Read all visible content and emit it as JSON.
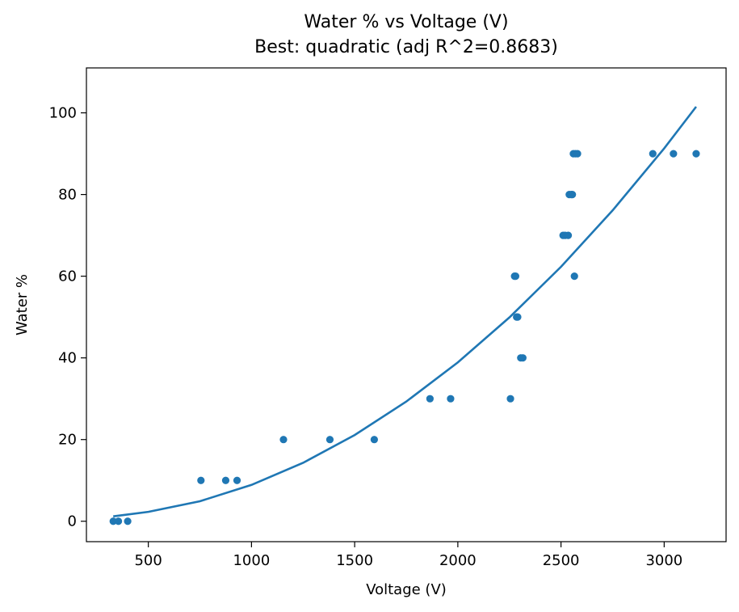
{
  "chart_data": {
    "type": "scatter",
    "title": "Water % vs Voltage (V)",
    "subtitle": "Best: quadratic (adj R^2=0.8683)",
    "xlabel": "Voltage (V)",
    "ylabel": "Water %",
    "xlim": [
      200,
      3300
    ],
    "ylim": [
      -5,
      111
    ],
    "xticks": [
      500,
      1000,
      1500,
      2000,
      2500,
      3000
    ],
    "yticks": [
      0,
      20,
      40,
      60,
      80,
      100
    ],
    "grid": false,
    "colors": {
      "points": "#1f77b4",
      "fit": "#1f77b4"
    },
    "series": [
      {
        "kind": "points",
        "x": [
          330,
          355,
          400,
          755,
          875,
          930,
          1155,
          1380,
          1595,
          1865,
          1965,
          2255,
          2275,
          2280,
          2285,
          2290,
          2305,
          2315,
          2510,
          2520,
          2535,
          2540,
          2550,
          2555,
          2560,
          2565,
          2570,
          2580,
          2945,
          3045,
          3155
        ],
        "y": [
          0,
          0,
          0,
          10,
          10,
          10,
          20,
          20,
          20,
          30,
          30,
          30,
          60,
          60,
          50,
          50,
          40,
          40,
          70,
          70,
          70,
          80,
          80,
          80,
          90,
          60,
          90,
          90,
          90,
          90,
          90
        ]
      },
      {
        "kind": "fit",
        "model": "quadratic",
        "x": [
          330,
          500,
          750,
          1000,
          1250,
          1500,
          1750,
          2000,
          2250,
          2500,
          2750,
          3000,
          3155
        ],
        "y": [
          1.2,
          2.3,
          4.9,
          8.9,
          14.3,
          21.1,
          29.3,
          38.9,
          49.9,
          62.3,
          76.1,
          91.3,
          101.5
        ]
      }
    ]
  }
}
